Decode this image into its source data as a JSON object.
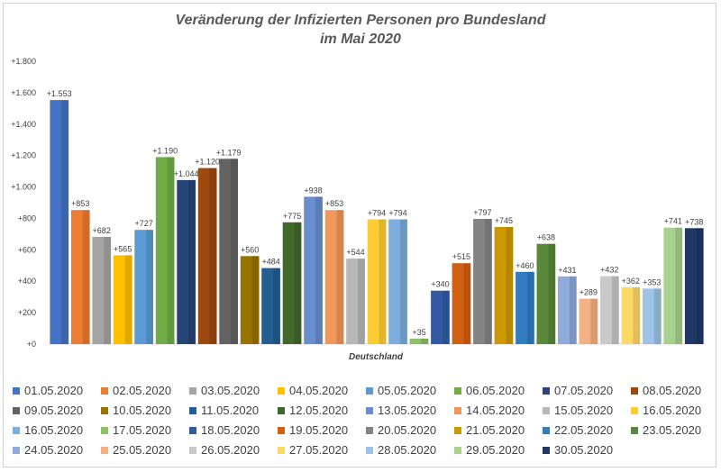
{
  "chart_data": {
    "type": "bar",
    "title_line1": "Veränderung der Infizierten Personen pro Bundesland",
    "title_line2": "im Mai 2020",
    "xlabel": "Deutschland",
    "ylabel": "",
    "ylim": [
      0,
      1800
    ],
    "yticks": [
      {
        "value": 0,
        "label": "+0"
      },
      {
        "value": 200,
        "label": "+200"
      },
      {
        "value": 400,
        "label": "+400"
      },
      {
        "value": 600,
        "label": "+600"
      },
      {
        "value": 800,
        "label": "+800"
      },
      {
        "value": 1000,
        "label": "+1.000"
      },
      {
        "value": 1200,
        "label": "+1.200"
      },
      {
        "value": 1400,
        "label": "+1.400"
      },
      {
        "value": 1600,
        "label": "+1.600"
      },
      {
        "value": 1800,
        "label": "+1.800"
      }
    ],
    "grid": false,
    "legend_position": "bottom",
    "series": [
      {
        "name": "01.05.2020",
        "value": 1553,
        "label": "+1.553",
        "color": "#4472c4"
      },
      {
        "name": "02.05.2020",
        "value": 853,
        "label": "+853",
        "color": "#ed7d31"
      },
      {
        "name": "03.05.2020",
        "value": 682,
        "label": "+682",
        "color": "#a5a5a5"
      },
      {
        "name": "04.05.2020",
        "value": 565,
        "label": "+565",
        "color": "#ffc000"
      },
      {
        "name": "05.05.2020",
        "value": 727,
        "label": "+727",
        "color": "#5b9bd5"
      },
      {
        "name": "06.05.2020",
        "value": 1190,
        "label": "+1.190",
        "color": "#70ad47"
      },
      {
        "name": "07.05.2020",
        "value": 1044,
        "label": "+1.044",
        "color": "#264478"
      },
      {
        "name": "08.05.2020",
        "value": 1120,
        "label": "+1.120",
        "color": "#9e480e"
      },
      {
        "name": "09.05.2020",
        "value": 1179,
        "label": "+1.179",
        "color": "#636363"
      },
      {
        "name": "10.05.2020",
        "value": 560,
        "label": "+560",
        "color": "#997300"
      },
      {
        "name": "11.05.2020",
        "value": 484,
        "label": "+484",
        "color": "#255e91"
      },
      {
        "name": "12.05.2020",
        "value": 775,
        "label": "+775",
        "color": "#43682b"
      },
      {
        "name": "13.05.2020",
        "value": 938,
        "label": "+938",
        "color": "#698ed0"
      },
      {
        "name": "14.05.2020",
        "value": 853,
        "label": "+853",
        "color": "#f1975a"
      },
      {
        "name": "15.05.2020",
        "value": 544,
        "label": "+544",
        "color": "#b7b7b7"
      },
      {
        "name": "16.05.2020",
        "value": 794,
        "label": "+794",
        "color": "#ffcd33"
      },
      {
        "name": "16.05.2020",
        "value": 794,
        "label": "+794",
        "color": "#7cafdd"
      },
      {
        "name": "17.05.2020",
        "value": 35,
        "label": "+35",
        "color": "#8cc168"
      },
      {
        "name": "18.05.2020",
        "value": 340,
        "label": "+340",
        "color": "#335aa1"
      },
      {
        "name": "19.05.2020",
        "value": 515,
        "label": "+515",
        "color": "#d26012"
      },
      {
        "name": "20.05.2020",
        "value": 797,
        "label": "+797",
        "color": "#848484"
      },
      {
        "name": "21.05.2020",
        "value": 745,
        "label": "+745",
        "color": "#cc9a00"
      },
      {
        "name": "22.05.2020",
        "value": 460,
        "label": "+460",
        "color": "#327dc2"
      },
      {
        "name": "23.05.2020",
        "value": 638,
        "label": "+638",
        "color": "#5a8a39"
      },
      {
        "name": "24.05.2020",
        "value": 431,
        "label": "+431",
        "color": "#8faadc"
      },
      {
        "name": "25.05.2020",
        "value": 289,
        "label": "+289",
        "color": "#f4b183"
      },
      {
        "name": "26.05.2020",
        "value": 432,
        "label": "+432",
        "color": "#c9c9c9"
      },
      {
        "name": "27.05.2020",
        "value": 362,
        "label": "+362",
        "color": "#ffd966"
      },
      {
        "name": "28.05.2020",
        "value": 353,
        "label": "+353",
        "color": "#9dc3e6"
      },
      {
        "name": "29.05.2020",
        "value": 741,
        "label": "+741",
        "color": "#a9d18e"
      },
      {
        "name": "30.05.2020",
        "value": 738,
        "label": "+738",
        "color": "#203864"
      }
    ]
  }
}
